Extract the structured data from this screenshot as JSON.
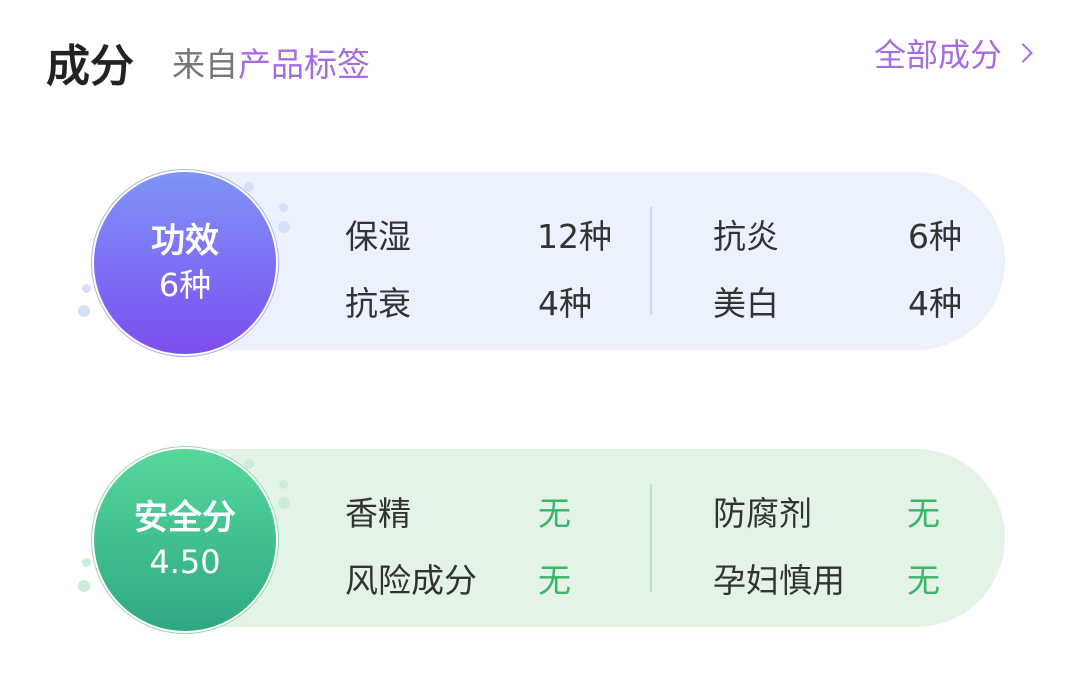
{
  "header": {
    "title": "成分",
    "source_prefix": "来自",
    "source_tag": "产品标签",
    "all_link": "全部成分"
  },
  "efficacy": {
    "badge_title": "功效",
    "badge_value": "6种",
    "items": [
      {
        "label": "保湿",
        "value": "12种"
      },
      {
        "label": "抗衰",
        "value": "4种"
      },
      {
        "label": "抗炎",
        "value": "6种"
      },
      {
        "label": "美白",
        "value": "4种"
      }
    ]
  },
  "safety": {
    "badge_title": "安全分",
    "badge_value": "4.50",
    "items": [
      {
        "label": "香精",
        "value": "无"
      },
      {
        "label": "风险成分",
        "value": "无"
      },
      {
        "label": "防腐剂",
        "value": "无"
      },
      {
        "label": "孕妇慎用",
        "value": "无"
      }
    ]
  },
  "colors": {
    "accent": "#a66de0",
    "safe_green": "#3bb56a",
    "efficacy_bg": "#ebf1fd",
    "safety_bg": "#e3f3e6"
  }
}
